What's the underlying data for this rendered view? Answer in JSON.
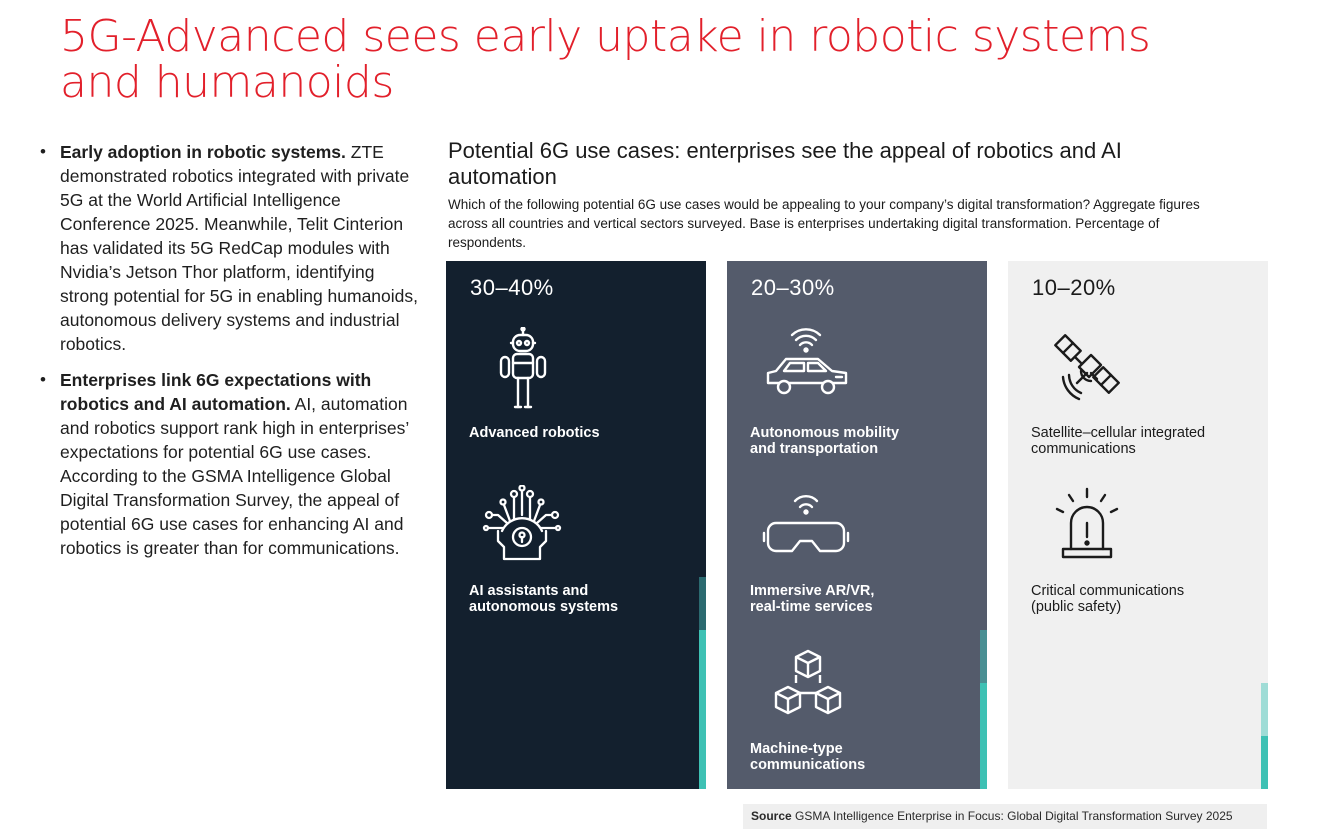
{
  "title": "5G-Advanced sees early uptake in robotic systems and humanoids",
  "bullets": [
    {
      "bold": "Early adoption in robotic systems.",
      "text": " ZTE demonstrated robotics integrated with private 5G at the World Artificial Intelligence Conference 2025. Meanwhile, Telit Cinterion has validated its 5G RedCap modules with Nvidia’s Jetson Thor platform, identifying strong potential for 5G in enabling humanoids, autonomous delivery systems and industrial robotics."
    },
    {
      "bold": "Enterprises link 6G expectations with robotics and AI automation.",
      "text": " AI, automation and robotics support rank high in enterprises’ expectations for potential 6G use cases. According to the GSMA Intelligence Global Digital Transformation Survey, the appeal of potential 6G use cases for enhancing AI and robotics is greater than for communications."
    }
  ],
  "chart": {
    "title": "Potential 6G use cases: enterprises see the appeal of robotics and AI automation",
    "subtitle": "Which of the following potential 6G use cases would be appealing to your company’s digital transformation? Aggregate figures across all countries and vertical sectors surveyed. Base is enterprises undertaking digital transformation. Percentage of respondents.",
    "columns": [
      {
        "range": "30–40%",
        "items": [
          {
            "label_l1": "Advanced robotics",
            "label_l2": "",
            "icon": "robot-icon"
          },
          {
            "label_l1": "AI assistants and",
            "label_l2": "autonomous systems",
            "icon": "ai-chip-icon"
          }
        ]
      },
      {
        "range": "20–30%",
        "items": [
          {
            "label_l1": "Autonomous mobility",
            "label_l2": "and transportation",
            "icon": "connected-car-icon"
          },
          {
            "label_l1": "Immersive AR/VR,",
            "label_l2": "real-time services",
            "icon": "vr-headset-icon"
          },
          {
            "label_l1": "Machine-type",
            "label_l2": "communications",
            "icon": "cubes-icon"
          }
        ]
      },
      {
        "range": "10–20%",
        "items": [
          {
            "label_l1": "Satellite–cellular integrated",
            "label_l2": "communications",
            "icon": "satellite-icon"
          },
          {
            "label_l1": "Critical communications",
            "label_l2": "(public safety)",
            "icon": "alarm-beacon-icon"
          }
        ]
      }
    ],
    "colors": {
      "col1": "#13202e",
      "col2": "#545b6b",
      "col3": "#f0f0f0",
      "accent": "#3ec1b4",
      "title_red": "#e2202b"
    }
  },
  "source": {
    "bold": "Source",
    "text": " GSMA Intelligence Enterprise in Focus: Global Digital Transformation Survey 2025"
  }
}
